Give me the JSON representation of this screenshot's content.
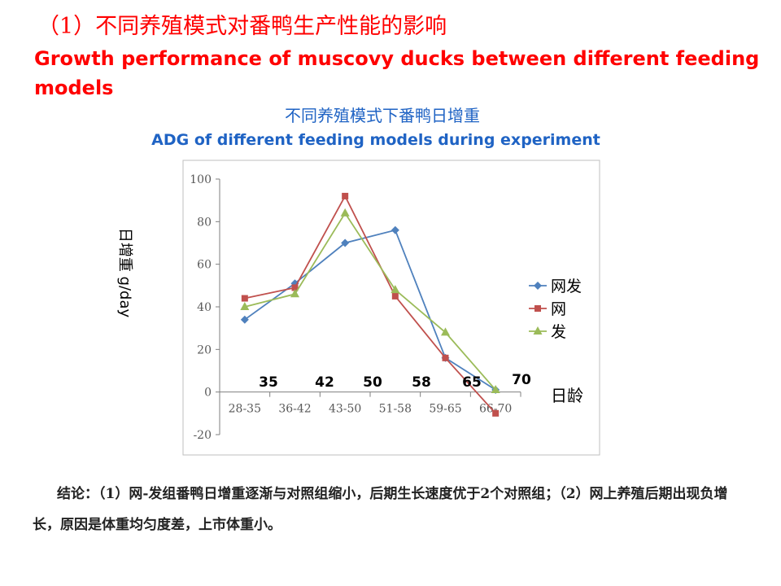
{
  "slide": {
    "title_cn": "（1）不同养殖模式对番鸭生产性能的影响",
    "title_en": "Growth performance of muscovy ducks between different feeding models",
    "conclusion": "结论：（1）网-发组番鸭日增重逐渐与对照组缩小，后期生长速度优于2个对照组；（2）网上养殖后期出现负增长，原因是体重均匀度差，上市体重小。"
  },
  "colors": {
    "title": "#ff0000",
    "chart_title": "#1f63c4",
    "series_wangfa": "#4f81bd",
    "series_wang": "#c0504d",
    "series_fa": "#9bbb59"
  },
  "chart_data": {
    "type": "line",
    "title": "不同养殖模式下番鸭日增重",
    "subtitle": "ADG of different feeding models during experiment",
    "ylabel": "日增重 g/day",
    "xlabel": "日龄",
    "categories": [
      "28-35",
      "36-42",
      "43-50",
      "51-58",
      "59-65",
      "66-70"
    ],
    "yticks": [
      -20,
      0,
      20,
      40,
      60,
      80,
      100
    ],
    "ylim": [
      -20,
      100
    ],
    "grid": false,
    "legend_position": "right",
    "age_annotations": [
      "35",
      "42",
      "50",
      "58",
      "65",
      "70"
    ],
    "series": [
      {
        "name": "网发",
        "marker": "diamond",
        "color": "#4f81bd",
        "values": [
          34,
          51,
          70,
          76,
          16,
          1
        ]
      },
      {
        "name": "网",
        "marker": "square",
        "color": "#c0504d",
        "values": [
          44,
          49,
          92,
          45,
          16,
          -10
        ]
      },
      {
        "name": "发",
        "marker": "triangle",
        "color": "#9bbb59",
        "values": [
          40,
          46,
          84,
          48,
          28,
          1
        ]
      }
    ]
  }
}
